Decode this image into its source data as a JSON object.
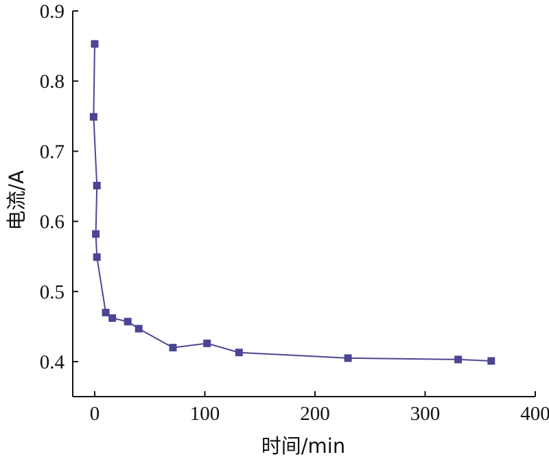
{
  "chart_data": {
    "type": "line",
    "title": "",
    "xlabel": "时间/min",
    "ylabel": "电流/A",
    "xlim": [
      -20,
      400
    ],
    "ylim": [
      0.37,
      0.9
    ],
    "x_ticks": [
      0,
      100,
      200,
      300,
      400
    ],
    "x_tick_labels": [
      "0",
      "100",
      "200",
      "300",
      "400"
    ],
    "y_ticks": [
      0.4,
      0.5,
      0.6,
      0.7,
      0.8,
      0.9
    ],
    "y_tick_labels": [
      "0.4",
      "0.5",
      "0.6",
      "0.7",
      "0.8",
      "0.9"
    ],
    "grid": false,
    "legend": "none",
    "series": [
      {
        "color": "#4b4593",
        "marker": "square",
        "points": [
          {
            "x": 0,
            "y": 0.853
          },
          {
            "x": -1,
            "y": 0.749
          },
          {
            "x": 2,
            "y": 0.651
          },
          {
            "x": 1,
            "y": 0.582
          },
          {
            "x": 2,
            "y": 0.549
          },
          {
            "x": 10,
            "y": 0.47
          },
          {
            "x": 16,
            "y": 0.462
          },
          {
            "x": 30,
            "y": 0.457
          },
          {
            "x": 40,
            "y": 0.447
          },
          {
            "x": 71,
            "y": 0.42
          },
          {
            "x": 102,
            "y": 0.426
          },
          {
            "x": 131,
            "y": 0.413
          },
          {
            "x": 230,
            "y": 0.405
          },
          {
            "x": 330,
            "y": 0.403
          },
          {
            "x": 360,
            "y": 0.401
          }
        ]
      }
    ]
  }
}
